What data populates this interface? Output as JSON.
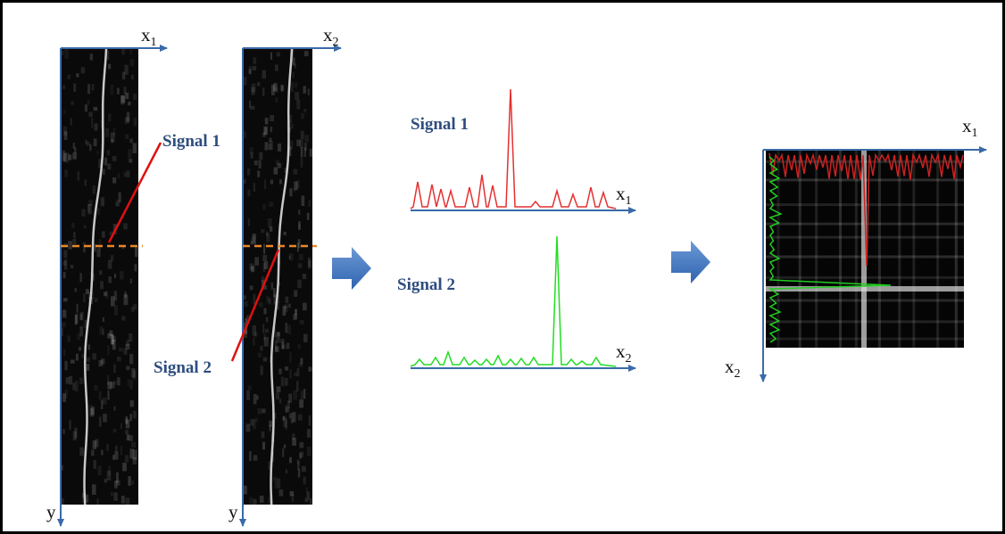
{
  "panels": [
    {
      "axis_x": {
        "main": "x",
        "sub": "1"
      },
      "axis_y": "y",
      "annotation": "Signal 1"
    },
    {
      "axis_x": {
        "main": "x",
        "sub": "2"
      },
      "axis_y": "y",
      "annotation": "Signal 2"
    }
  ],
  "signals": [
    {
      "label": "Signal 1",
      "axis": {
        "main": "x",
        "sub": "1"
      }
    },
    {
      "label": "Signal 2",
      "axis": {
        "main": "x",
        "sub": "2"
      }
    }
  ],
  "correlation": {
    "axis_x": {
      "main": "x",
      "sub": "1"
    },
    "axis_y": {
      "main": "x",
      "sub": "2"
    }
  }
}
